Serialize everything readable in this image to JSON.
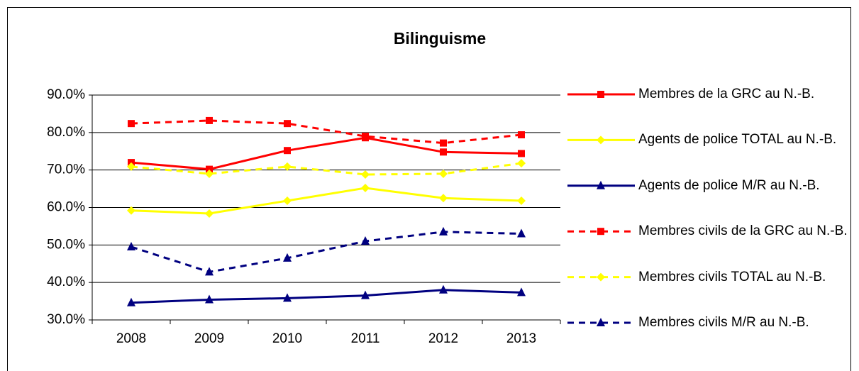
{
  "chart_data": {
    "type": "line",
    "title": "Bilinguisme",
    "categories": [
      "2008",
      "2009",
      "2010",
      "2011",
      "2012",
      "2013"
    ],
    "series": [
      {
        "name": "Membres de la GRC au N.-B.",
        "color": "#ff0000",
        "dash": "solid",
        "marker": "square",
        "values": [
          72.0,
          70.2,
          75.2,
          78.6,
          74.8,
          74.4
        ]
      },
      {
        "name": "Agents de police TOTAL au N.-B.",
        "color": "#ffff00",
        "dash": "solid",
        "marker": "diamond",
        "values": [
          59.2,
          58.4,
          61.8,
          65.2,
          62.5,
          61.8
        ]
      },
      {
        "name": "Agents de police M/R au N.-B.",
        "color": "#000080",
        "dash": "solid",
        "marker": "triangle",
        "values": [
          34.6,
          35.4,
          35.8,
          36.5,
          38.0,
          37.3
        ]
      },
      {
        "name": "Membres civils de la GRC au N.-B.",
        "color": "#ff0000",
        "dash": "dashed",
        "marker": "square",
        "values": [
          82.4,
          83.2,
          82.4,
          79.0,
          77.2,
          79.4
        ]
      },
      {
        "name": "Membres civils TOTAL au N.-B.",
        "color": "#ffff00",
        "dash": "dashed",
        "marker": "diamond",
        "values": [
          70.9,
          69.0,
          70.9,
          68.8,
          69.0,
          71.8
        ]
      },
      {
        "name": "Membres civils M/R au N.-B.",
        "color": "#000080",
        "dash": "dashed",
        "marker": "triangle",
        "values": [
          49.5,
          42.8,
          46.5,
          51.0,
          53.5,
          53.0
        ]
      }
    ],
    "ylim": [
      30,
      90
    ],
    "yticks": [
      {
        "value": 30,
        "label": "30.0%"
      },
      {
        "value": 40,
        "label": "40.0%"
      },
      {
        "value": 50,
        "label": "50.0%"
      },
      {
        "value": 60,
        "label": "60.0%"
      },
      {
        "value": 70,
        "label": "70.0%"
      },
      {
        "value": 80,
        "label": "80.0%"
      },
      {
        "value": 90,
        "label": "90.0%"
      }
    ],
    "grid": true,
    "legend": "right"
  }
}
